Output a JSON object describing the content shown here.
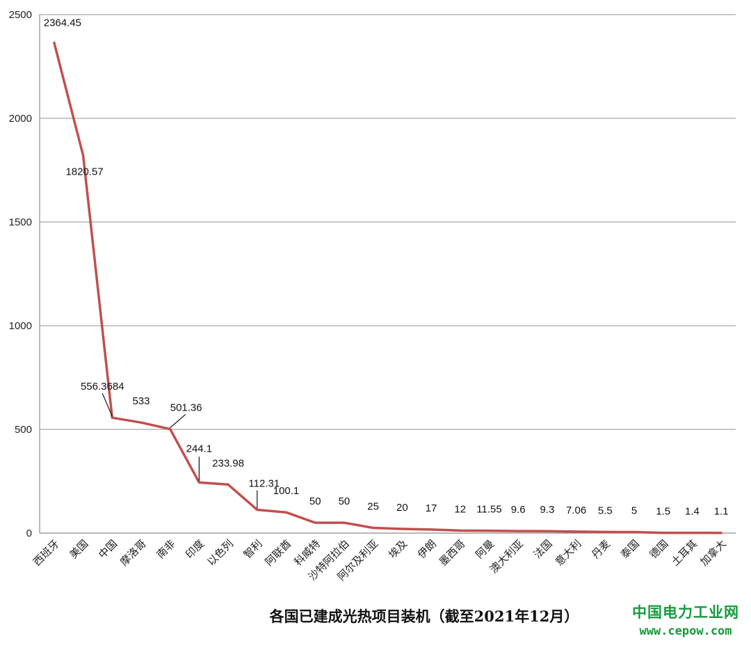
{
  "chart_data": {
    "type": "line",
    "title": "各国已建成光热项目装机（截至2021年12月）",
    "xlabel": "",
    "ylabel": "",
    "ylim": [
      0,
      2500
    ],
    "yticks": [
      0,
      500,
      1000,
      1500,
      2000,
      2500
    ],
    "ytick_labels": [
      "0",
      "500",
      "1000",
      "1500",
      "2000",
      "2500"
    ],
    "grid": true,
    "legend": "none",
    "categories": [
      "西班牙",
      "美国",
      "中国",
      "摩洛哥",
      "南非",
      "印度",
      "以色列",
      "智利",
      "阿联酋",
      "科威特",
      "沙特阿拉伯",
      "阿尔及利亚",
      "埃及",
      "伊朗",
      "墨西哥",
      "阿曼",
      "澳大利亚",
      "法国",
      "意大利",
      "丹麦",
      "泰国",
      "德国",
      "土耳其",
      "加拿大"
    ],
    "values": [
      2364.45,
      1820.57,
      556.3684,
      533,
      501.36,
      244.1,
      233.98,
      112.31,
      100.1,
      50,
      50,
      25,
      20,
      17,
      12,
      11.55,
      9.6,
      9.3,
      7.06,
      5.5,
      5,
      1.5,
      1.4,
      1.1
    ],
    "data_labels": [
      "2364.45",
      "1820.57",
      "556.3684",
      "533",
      "501.36",
      "244.1",
      "233.98",
      "112.31",
      "100.1",
      "50",
      "50",
      "25",
      "20",
      "17",
      "12",
      "11.55",
      "9.6",
      "9.3",
      "7.06",
      "5.5",
      "5",
      "1.5",
      "1.4",
      "1.1"
    ],
    "line_color": "#c0504d"
  },
  "watermark": {
    "name": "中国电力工业网",
    "url": "www.cepow.com"
  }
}
